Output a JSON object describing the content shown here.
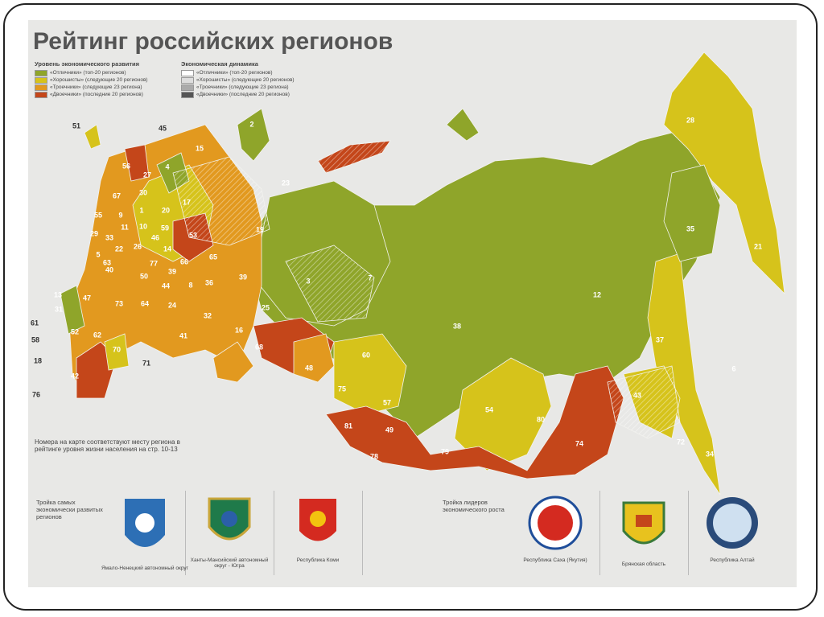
{
  "title": "Рейтинг российских регионов",
  "legend_level": {
    "title": "Уровень экономического развития",
    "items": [
      {
        "label": "«Отличники» (топ-20 регионов)",
        "color": "#8fa52a"
      },
      {
        "label": "«Хорошисты» (следующие 20 регионов)",
        "color": "#d6c31b"
      },
      {
        "label": "«Троечники» (следующие 23 региона)",
        "color": "#e2991f"
      },
      {
        "label": "«Двоечники» (последние 20 регионов)",
        "color": "#c4461a"
      }
    ]
  },
  "legend_dynamics": {
    "title": "Экономическая динамика",
    "items": [
      {
        "label": "«Отличники» (топ-20 регионов)",
        "color": "#ffffff"
      },
      {
        "label": "«Хорошисты» (следующие 20 регионов)",
        "color": "#dddddd"
      },
      {
        "label": "«Троечники» (следующие 23 региона)",
        "color": "#aaaaaa"
      },
      {
        "label": "«Двоечники» (последние 20 регионов)",
        "color": "#555555"
      }
    ]
  },
  "note": "Номера на карте соответствуют месту региона в рейтинге уровня жизни населения на стр. 10-13",
  "map_labels": [
    "2",
    "28",
    "51",
    "45",
    "15",
    "56",
    "4",
    "27",
    "23",
    "67",
    "30",
    "17",
    "55",
    "9",
    "1",
    "20",
    "11",
    "10",
    "59",
    "53",
    "19",
    "29",
    "33",
    "46",
    "35",
    "22",
    "26",
    "14",
    "21",
    "5",
    "65",
    "66",
    "77",
    "63",
    "40",
    "39",
    "50",
    "36",
    "39",
    "7",
    "3",
    "44",
    "8",
    "12",
    "47",
    "73",
    "64",
    "24",
    "25",
    "13",
    "31",
    "61",
    "32",
    "38",
    "16",
    "41",
    "52",
    "62",
    "58",
    "37",
    "68",
    "70",
    "60",
    "6",
    "18",
    "71",
    "48",
    "42",
    "75",
    "76",
    "43",
    "57",
    "54",
    "80",
    "81",
    "49",
    "72",
    "74",
    "79",
    "78",
    "34"
  ],
  "top_developed": {
    "title": "Тройка самых экономически развитых регионов",
    "regions": [
      "Ямало-Ненецкий автономный округ",
      "Ханты-Мансийский автономный округ - Югра",
      "Республика Коми"
    ]
  },
  "top_growth": {
    "title": "Тройка лидеров экономического роста",
    "regions": [
      "Республика Саха (Якутия)",
      "Брянская область",
      "Республика Алтай"
    ]
  }
}
